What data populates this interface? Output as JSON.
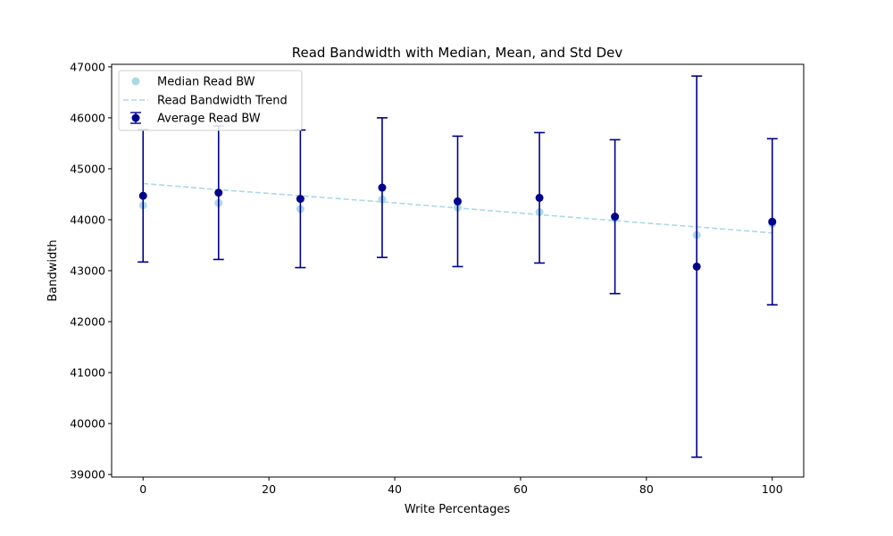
{
  "chart_data": {
    "type": "scatter",
    "title": "Read Bandwidth with Median, Mean, and Std Dev",
    "xlabel": "Write Percentages",
    "ylabel": "Bandwidth",
    "xlim": [
      -5,
      105
    ],
    "ylim": [
      38950,
      47050
    ],
    "x_ticks": [
      0,
      20,
      40,
      60,
      80,
      100
    ],
    "y_ticks": [
      39000,
      40000,
      41000,
      42000,
      43000,
      44000,
      45000,
      46000,
      47000
    ],
    "grid": false,
    "legend_position": "top-left",
    "x": [
      0,
      12,
      25,
      38,
      50,
      63,
      75,
      88,
      100
    ],
    "series": [
      {
        "name": "Median Read BW",
        "kind": "scatter",
        "color": "#add8e6",
        "values": [
          44280,
          44330,
          44210,
          44400,
          44240,
          44150,
          44020,
          43700,
          43920
        ]
      },
      {
        "name": "Read Bandwidth Trend",
        "kind": "dashed-line",
        "color": "#add8e6",
        "values": [
          44710,
          44590,
          44470,
          44350,
          44230,
          44100,
          43980,
          43860,
          43740
        ]
      },
      {
        "name": "Average Read BW",
        "kind": "errorbar",
        "color": "#00008b",
        "values": [
          44470,
          44530,
          44410,
          44630,
          44360,
          44430,
          44060,
          43080,
          43960
        ],
        "std": [
          1300,
          1310,
          1350,
          1370,
          1280,
          1280,
          1510,
          3740,
          1630
        ]
      }
    ]
  }
}
